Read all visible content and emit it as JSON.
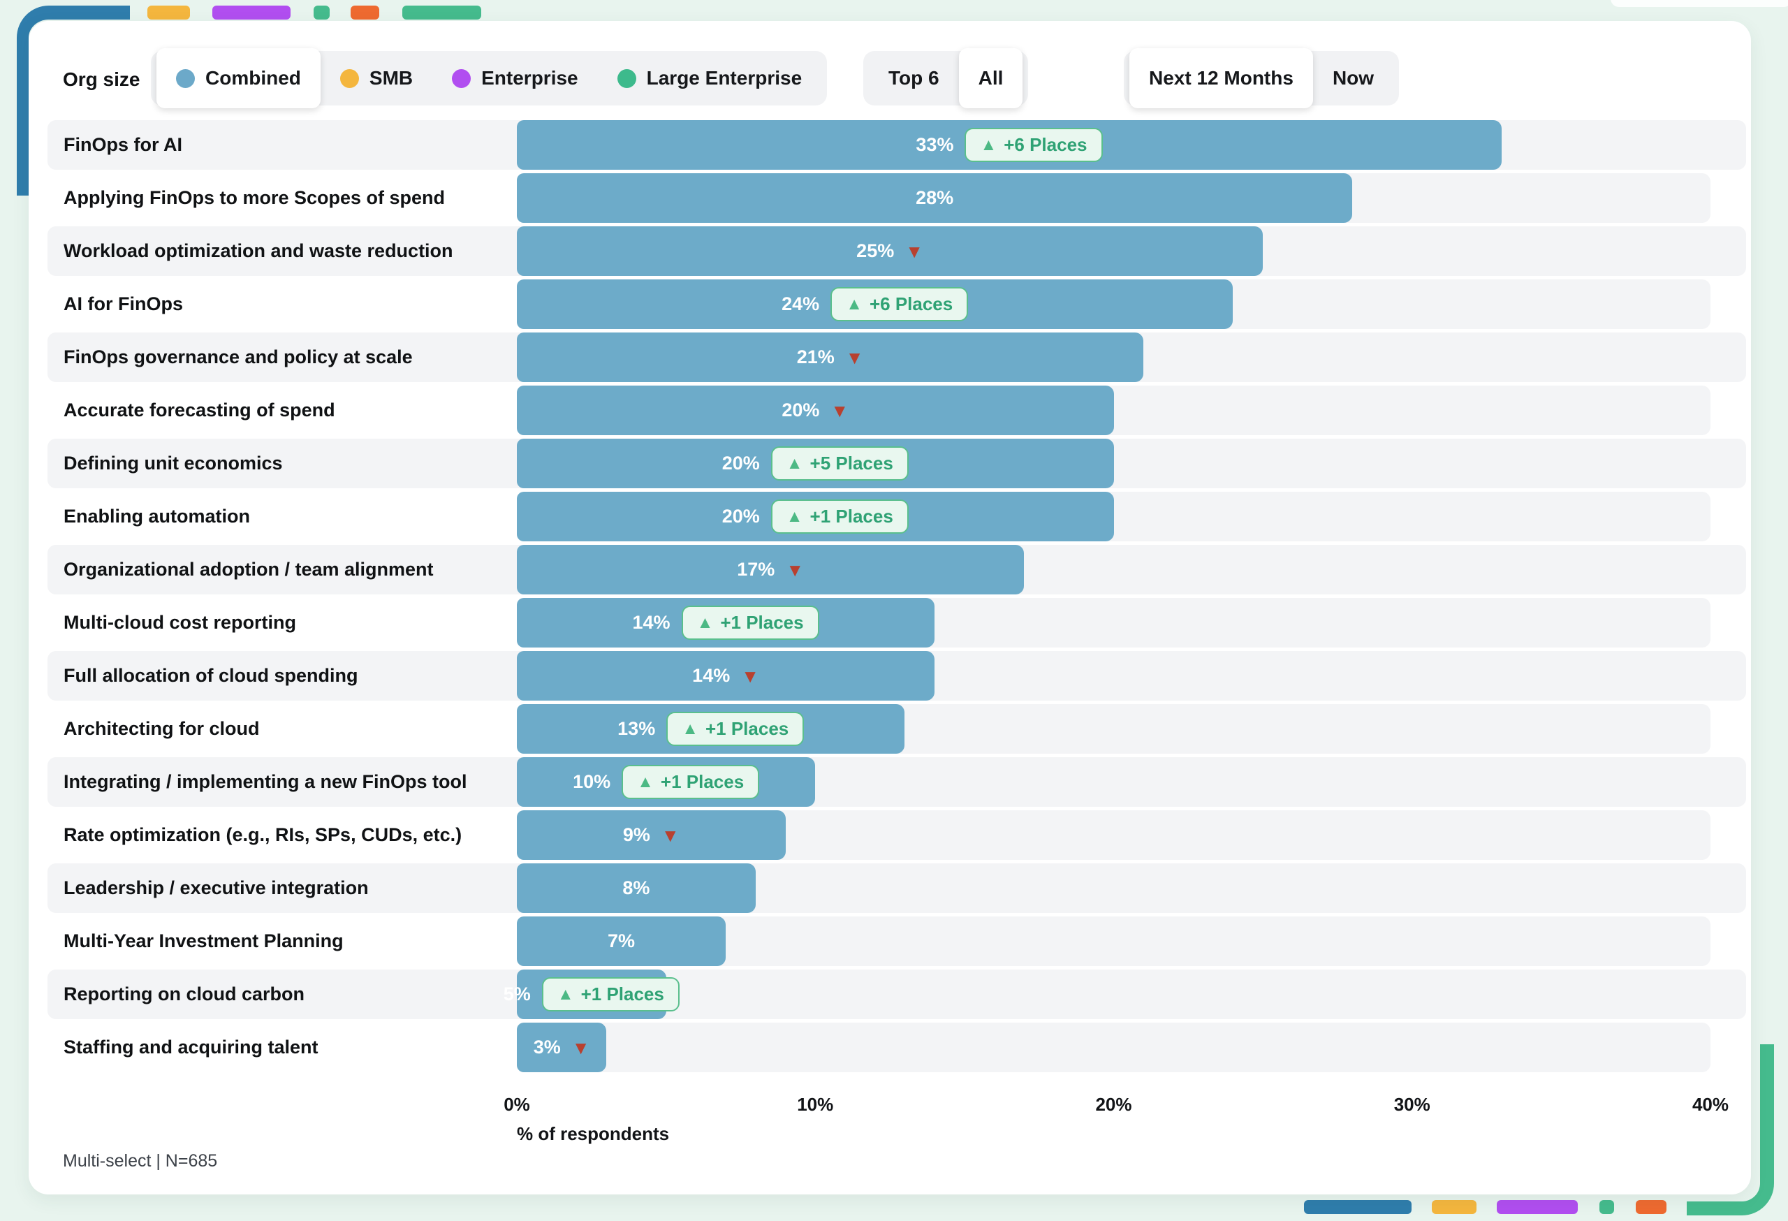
{
  "colors": {
    "bar": "#6dabc9",
    "badge_green": "#2fa274",
    "down_red": "#b8402f",
    "deco_blue": "#2f7dac",
    "deco_yellow": "#f4b63e",
    "deco_purple": "#b14ef0",
    "deco_green": "#45bb8d",
    "deco_orange": "#ee6a30"
  },
  "controls": {
    "org_size_label": "Org size",
    "org_size_options": [
      {
        "label": "Combined",
        "color": "#6ca9c9",
        "selected": true
      },
      {
        "label": "SMB",
        "color": "#f4b63e",
        "selected": false
      },
      {
        "label": "Enterprise",
        "color": "#b14ef0",
        "selected": false
      },
      {
        "label": "Large Enterprise",
        "color": "#3dba8c",
        "selected": false
      }
    ],
    "count_toggle": {
      "options": [
        "Top 6",
        "All"
      ],
      "selected": "All"
    },
    "time_toggle": {
      "options": [
        "Next 12 Months",
        "Now"
      ],
      "selected": "Next 12 Months"
    }
  },
  "chart_data": {
    "type": "bar",
    "orientation": "horizontal",
    "xlabel": "% of respondents",
    "x_ticks": [
      "0%",
      "10%",
      "20%",
      "30%",
      "40%"
    ],
    "xlim": [
      0,
      40
    ],
    "grid": false,
    "categories": [
      "FinOps for AI",
      "Applying FinOps to more Scopes of spend",
      "Workload optimization and waste reduction",
      "AI for FinOps",
      "FinOps governance and policy at scale",
      "Accurate forecasting of spend",
      "Defining unit economics",
      "Enabling automation",
      "Organizational adoption / team alignment",
      "Multi-cloud cost reporting",
      "Full allocation of cloud spending",
      "Architecting for cloud",
      "Integrating / implementing a new FinOps tool",
      "Rate optimization (e.g., RIs, SPs, CUDs, etc.)",
      "Leadership / executive integration",
      "Multi-Year Investment Planning",
      "Reporting on cloud carbon",
      "Staffing and acquiring talent"
    ],
    "values": [
      33,
      28,
      25,
      24,
      21,
      20,
      20,
      20,
      17,
      14,
      14,
      13,
      10,
      9,
      8,
      7,
      5,
      3
    ],
    "changes": [
      {
        "direction": "up",
        "label": "+6 Places"
      },
      null,
      {
        "direction": "down",
        "label": ""
      },
      {
        "direction": "up",
        "label": "+6 Places"
      },
      {
        "direction": "down",
        "label": ""
      },
      {
        "direction": "down",
        "label": ""
      },
      {
        "direction": "up",
        "label": "+5 Places"
      },
      {
        "direction": "up",
        "label": "+1 Places"
      },
      {
        "direction": "down",
        "label": ""
      },
      {
        "direction": "up",
        "label": "+1 Places"
      },
      {
        "direction": "down",
        "label": ""
      },
      {
        "direction": "up",
        "label": "+1 Places"
      },
      {
        "direction": "up",
        "label": "+1 Places"
      },
      {
        "direction": "down",
        "label": ""
      },
      null,
      null,
      {
        "direction": "up",
        "label": "+1 Places"
      },
      {
        "direction": "down",
        "label": ""
      }
    ]
  },
  "footer": {
    "note": "Multi-select | N=685"
  }
}
